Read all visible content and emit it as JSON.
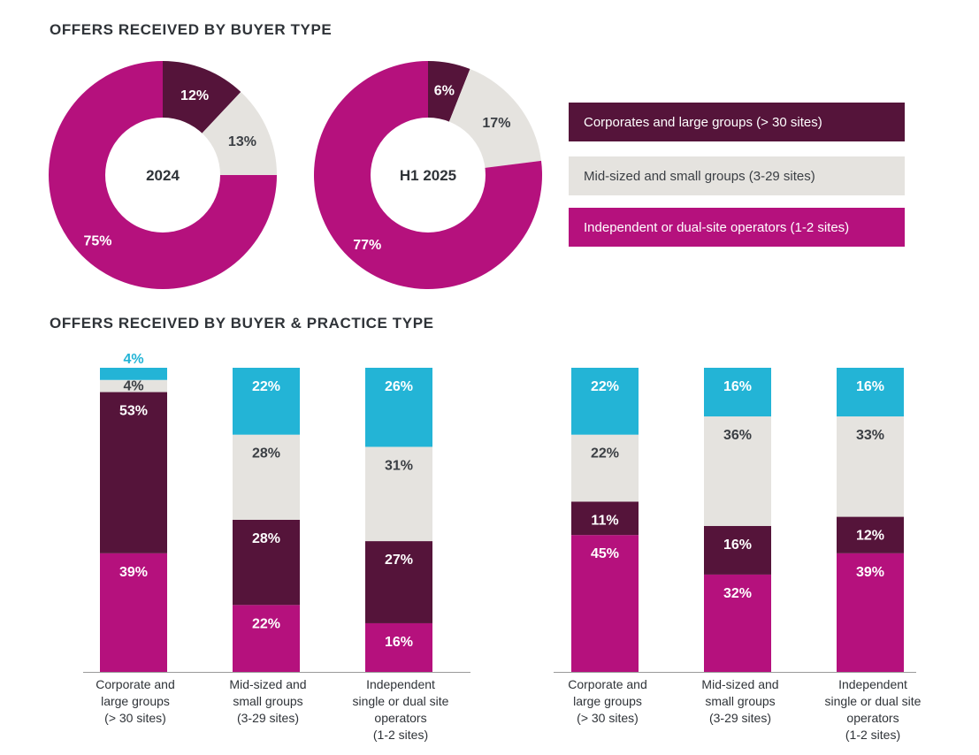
{
  "donut_section": {
    "title": "OFFERS RECEIVED BY BUYER TYPE"
  },
  "bar_section": {
    "title": "OFFERS RECEIVED BY BUYER & PRACTICE TYPE"
  },
  "colors": {
    "corporate": "#55143a",
    "mid": "#e5e3df",
    "independent": "#b5117d",
    "cyan": "#23b4d6",
    "text_dark": "#2f3338"
  },
  "legend": [
    {
      "label": "Corporates and large groups (> 30 sites)",
      "color": "#55143a",
      "text_color": "#ffffff"
    },
    {
      "label": "Mid-sized and small groups (3-29 sites)",
      "color": "#e5e3df",
      "text_color": "#3b3f44"
    },
    {
      "label": "Independent or dual-site operators (1-2 sites)",
      "color": "#b5117d",
      "text_color": "#ffffff"
    }
  ],
  "chart_data": [
    {
      "type": "pie",
      "center_label": "2024",
      "slices": [
        {
          "label": "Corporates and large groups (> 30 sites)",
          "value": 12,
          "value_label": "12%",
          "color": "#55143a",
          "text_color": "#ffffff"
        },
        {
          "label": "Mid-sized and small groups (3-29 sites)",
          "value": 13,
          "value_label": "13%",
          "color": "#e5e3df",
          "text_color": "#3b3f44"
        },
        {
          "label": "Independent or dual-site operators (1-2 sites)",
          "value": 75,
          "value_label": "75%",
          "color": "#b5117d",
          "text_color": "#ffffff"
        }
      ]
    },
    {
      "type": "pie",
      "center_label": "H1 2025",
      "slices": [
        {
          "label": "Corporates and large groups (> 30 sites)",
          "value": 6,
          "value_label": "6%",
          "color": "#55143a",
          "text_color": "#ffffff"
        },
        {
          "label": "Mid-sized and small groups (3-29 sites)",
          "value": 17,
          "value_label": "17%",
          "color": "#e5e3df",
          "text_color": "#3b3f44"
        },
        {
          "label": "Independent or dual-site operators (1-2 sites)",
          "value": 77,
          "value_label": "77%",
          "color": "#b5117d",
          "text_color": "#ffffff"
        }
      ]
    },
    {
      "type": "bar",
      "stacked": true,
      "categories": [
        "Corporate and\nlarge groups\n(> 30 sites)",
        "Mid-sized and\nsmall groups\n(3-29 sites)",
        "Independent\nsingle or dual site\noperators\n(1-2 sites)"
      ],
      "series": [
        {
          "color": "#b5117d",
          "text_color": "#ffffff",
          "values": [
            39,
            22,
            16
          ],
          "labels": [
            "39%",
            "22%",
            "16%"
          ]
        },
        {
          "color": "#55143a",
          "text_color": "#ffffff",
          "values": [
            53,
            28,
            27
          ],
          "labels": [
            "53%",
            "28%",
            "27%"
          ]
        },
        {
          "color": "#e5e3df",
          "text_color": "#3b3f44",
          "values": [
            4,
            28,
            31
          ],
          "labels": [
            "4%",
            "28%",
            "31%"
          ]
        },
        {
          "color": "#23b4d6",
          "text_color": "#ffffff",
          "values": [
            4,
            22,
            26
          ],
          "labels": [
            "4%",
            "22%",
            "26%"
          ]
        }
      ]
    },
    {
      "type": "bar",
      "stacked": true,
      "categories": [
        "Corporate and\nlarge groups\n(> 30 sites)",
        "Mid-sized and\nsmall groups\n(3-29 sites)",
        "Independent\nsingle or dual site\noperators\n(1-2 sites)"
      ],
      "series": [
        {
          "color": "#b5117d",
          "text_color": "#ffffff",
          "values": [
            45,
            32,
            39
          ],
          "labels": [
            "45%",
            "32%",
            "39%"
          ]
        },
        {
          "color": "#55143a",
          "text_color": "#ffffff",
          "values": [
            11,
            16,
            12
          ],
          "labels": [
            "11%",
            "16%",
            "12%"
          ]
        },
        {
          "color": "#e5e3df",
          "text_color": "#3b3f44",
          "values": [
            22,
            36,
            33
          ],
          "labels": [
            "22%",
            "36%",
            "33%"
          ]
        },
        {
          "color": "#23b4d6",
          "text_color": "#ffffff",
          "values": [
            22,
            16,
            16
          ],
          "labels": [
            "22%",
            "16%",
            "16%"
          ]
        }
      ]
    }
  ]
}
